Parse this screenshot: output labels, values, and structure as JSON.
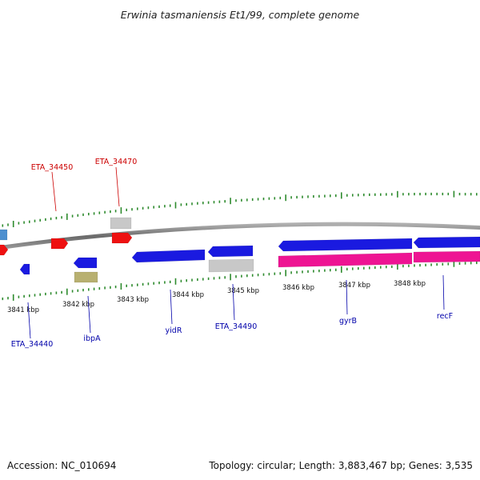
{
  "title": "Erwinia tasmaniensis Et1/99, complete genome",
  "footer": {
    "accession": "Accession: NC_010694",
    "summary": "Topology: circular; Length: 3,883,467 bp; Genes: 3,535"
  },
  "colors": {
    "backbone": "#7a7a7a",
    "ticks": "#2e8b2e",
    "label_plus": "#cc0000",
    "label_minus": "#0000aa",
    "blue": "#1a1ae0",
    "red": "#ee1111",
    "grey": "#c8c8c8",
    "pink": "#ee1493",
    "olive": "#b8b070",
    "steel": "#4d8fcf"
  },
  "kbp_ticks": [
    "3841 kbp",
    "3842 kbp",
    "3843 kbp",
    "3844 kbp",
    "3845 kbp",
    "3846 kbp",
    "3847 kbp",
    "3848 kbp"
  ],
  "labels_plus": [
    {
      "id": "eta-34450",
      "text": "ETA_34450"
    },
    {
      "id": "eta-34470",
      "text": "ETA_34470"
    }
  ],
  "labels_minus": [
    {
      "id": "eta-34440",
      "text": "ETA_34440"
    },
    {
      "id": "ibpa",
      "text": "ibpA"
    },
    {
      "id": "yidr",
      "text": "yidR"
    },
    {
      "id": "eta-34490",
      "text": "ETA_34490"
    },
    {
      "id": "gyrb",
      "text": "gyrB"
    },
    {
      "id": "recf",
      "text": "recF"
    }
  ],
  "features": [
    {
      "id": "steel-plus-edge",
      "color": "steel"
    },
    {
      "id": "red-plus-1",
      "color": "red"
    },
    {
      "id": "red-plus-2",
      "color": "red"
    },
    {
      "id": "grey-plus",
      "color": "grey"
    },
    {
      "id": "red-minus-edge",
      "color": "red"
    },
    {
      "id": "blue-eta34440",
      "color": "blue"
    },
    {
      "id": "blue-ibpa",
      "color": "blue"
    },
    {
      "id": "olive-ibpa",
      "color": "olive"
    },
    {
      "id": "blue-yidr",
      "color": "blue"
    },
    {
      "id": "blue-eta34490",
      "color": "blue"
    },
    {
      "id": "grey-eta34490",
      "color": "grey"
    },
    {
      "id": "blue-gyrb",
      "color": "blue"
    },
    {
      "id": "pink-gyrb",
      "color": "pink"
    },
    {
      "id": "blue-recf",
      "color": "blue"
    },
    {
      "id": "pink-recf",
      "color": "pink"
    }
  ]
}
